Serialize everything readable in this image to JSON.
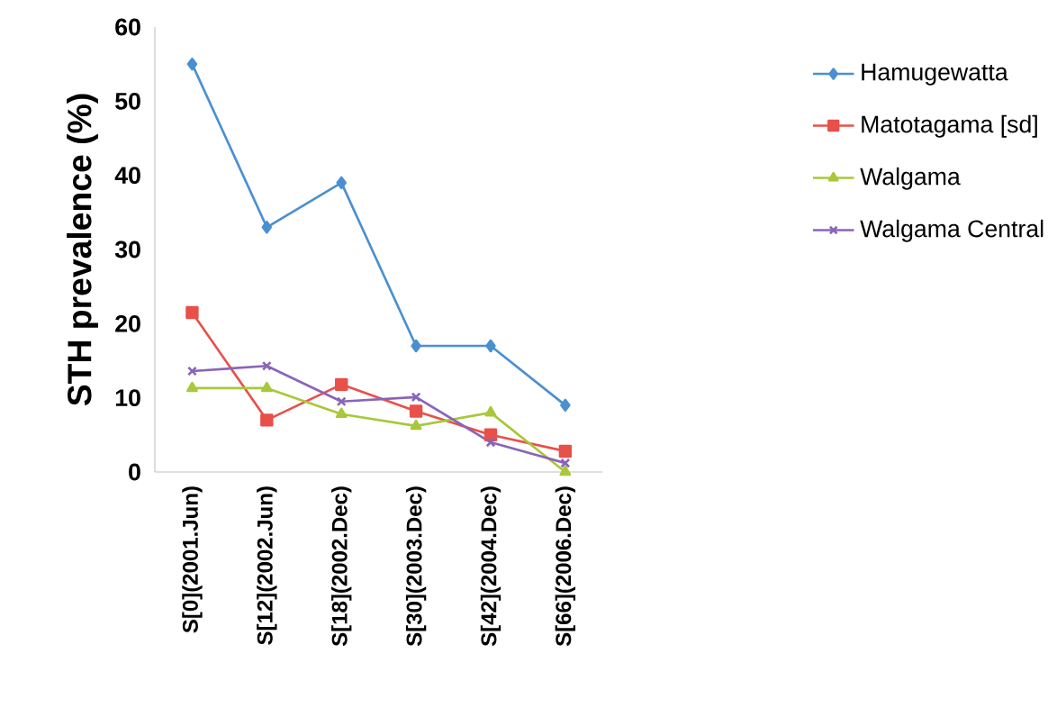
{
  "chart_data": {
    "type": "line",
    "ylabel": "STH prevalence (%)",
    "categories": [
      "S[0](2001.Jun)",
      "S[12](2002.Jun)",
      "S[18](2002.Dec)",
      "S[30](2003.Dec)",
      "S[42](2004.Dec)",
      "S[66](2006.Dec)"
    ],
    "series": [
      {
        "name": "Hamugewatta",
        "color": "#4a90d0",
        "marker": "diamond",
        "values": [
          55,
          33,
          39,
          17,
          17,
          9
        ]
      },
      {
        "name": "Matotagama [sd]",
        "color": "#e8504a",
        "marker": "square",
        "values": [
          21.5,
          7,
          11.8,
          8.2,
          5,
          2.8
        ]
      },
      {
        "name": "Walgama",
        "color": "#a8c83a",
        "marker": "triangle",
        "values": [
          11.3,
          11.3,
          7.8,
          6.2,
          8,
          0
        ]
      },
      {
        "name": "Walgama Central",
        "color": "#8a64b8",
        "marker": "cross",
        "values": [
          13.6,
          14.3,
          9.5,
          10.1,
          4,
          1.2
        ]
      }
    ],
    "ylim": [
      0,
      60
    ],
    "yticks": [
      0,
      10,
      20,
      30,
      40,
      50,
      60
    ],
    "legend": "right",
    "line_style": "solid"
  }
}
